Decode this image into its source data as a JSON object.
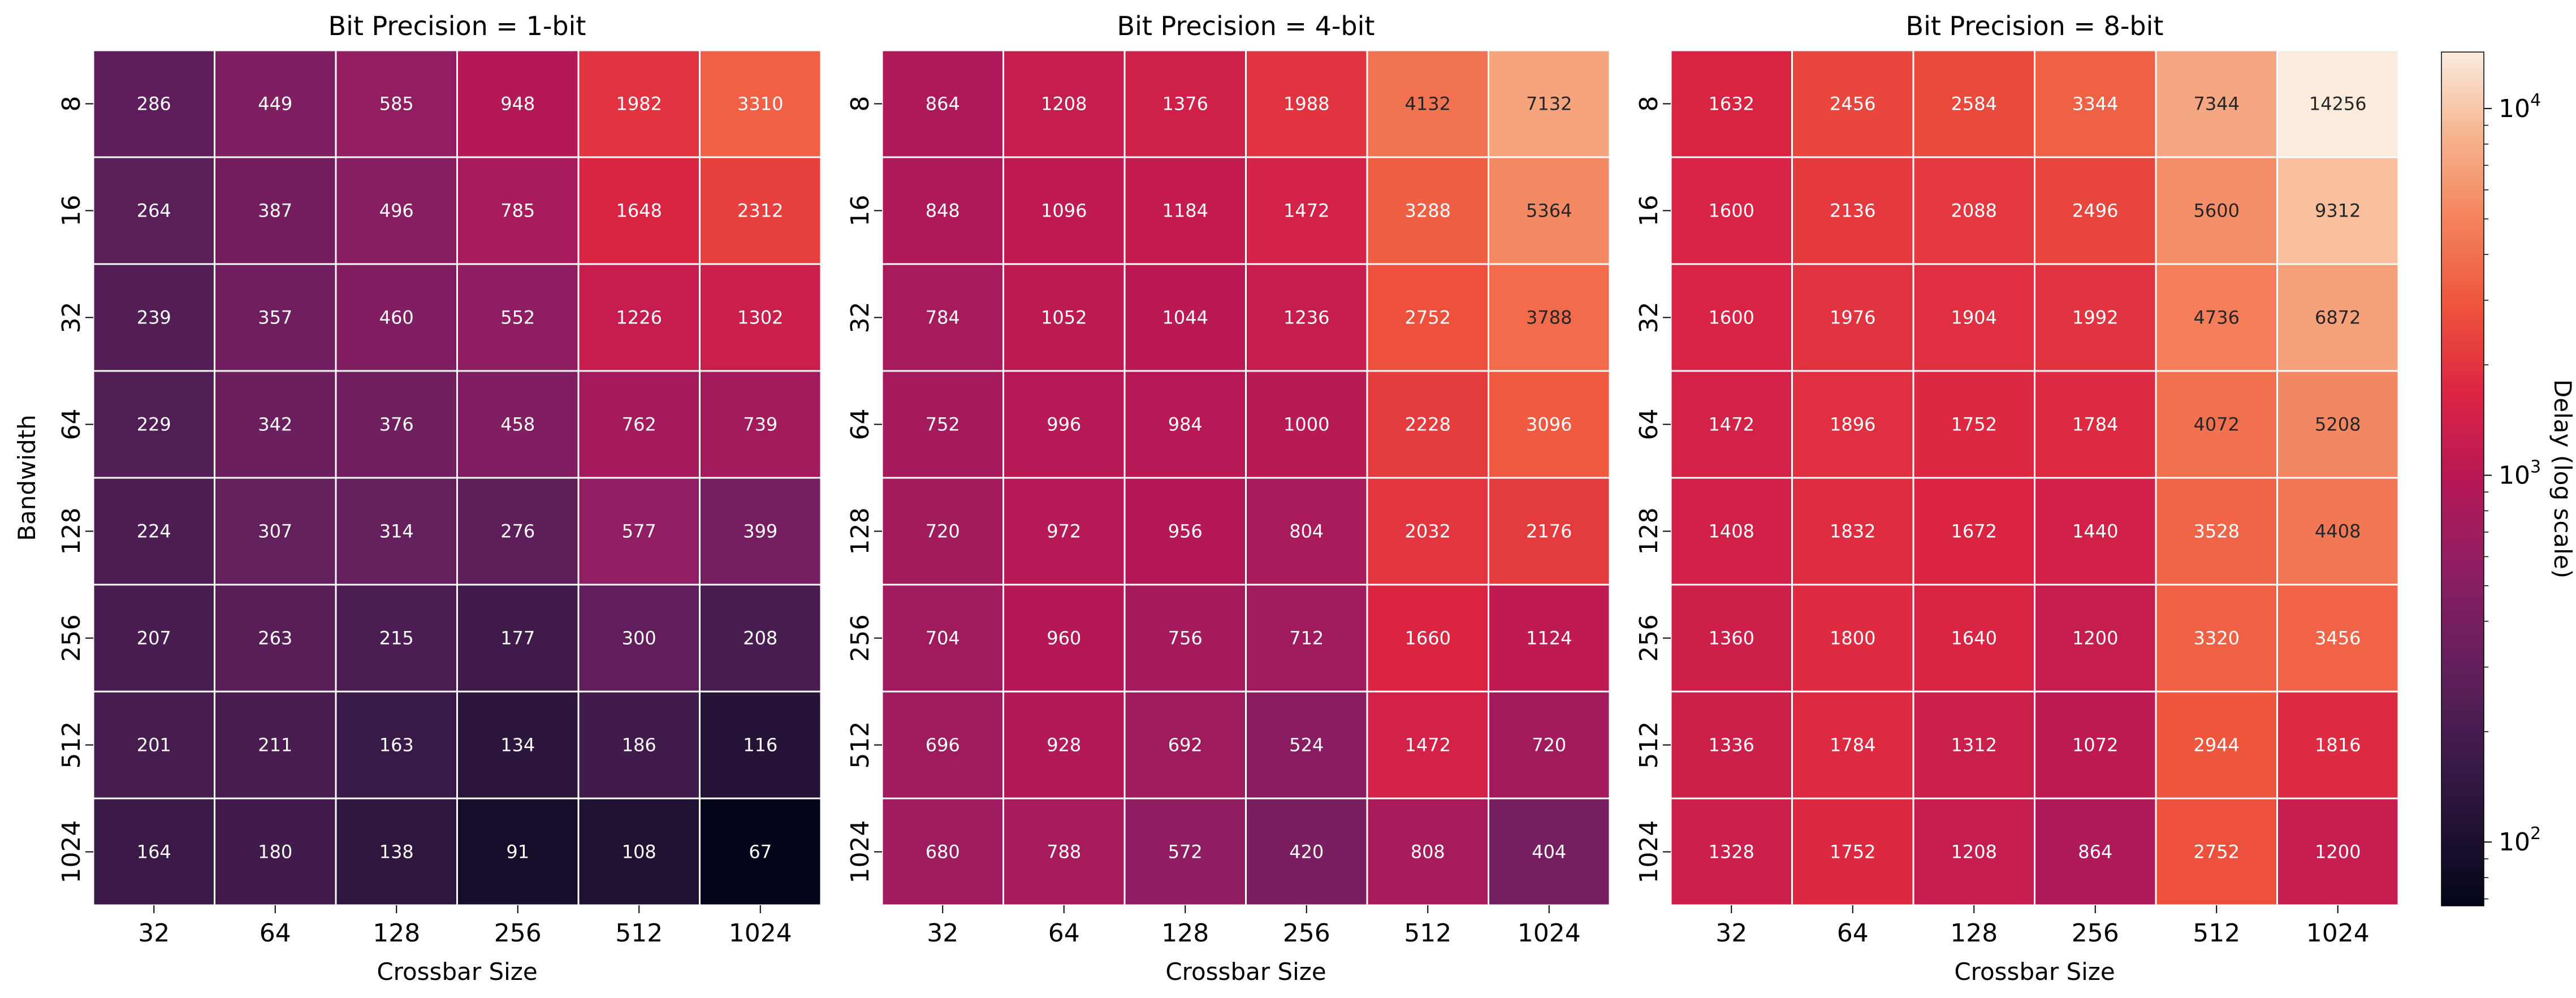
{
  "figure": {
    "colorbar": {
      "label": "Delay (log scale)",
      "scale": "log",
      "range": [
        67,
        14256
      ],
      "ticks": [
        {
          "base": "10",
          "exp": "2",
          "value": 100
        },
        {
          "base": "10",
          "exp": "3",
          "value": 1000
        },
        {
          "base": "10",
          "exp": "4",
          "value": 10000
        }
      ],
      "colormap": "rocket"
    }
  },
  "chart_data": [
    {
      "type": "heatmap",
      "title": "Bit Precision = 1-bit",
      "xlabel": "Crossbar Size",
      "ylabel": "Bandwidth",
      "x": [
        "32",
        "64",
        "128",
        "256",
        "512",
        "1024"
      ],
      "y": [
        "8",
        "16",
        "32",
        "64",
        "128",
        "256",
        "512",
        "1024"
      ],
      "values": [
        [
          286,
          449,
          585,
          948,
          1982,
          3310
        ],
        [
          264,
          387,
          496,
          785,
          1648,
          2312
        ],
        [
          239,
          357,
          460,
          552,
          1226,
          1302
        ],
        [
          229,
          342,
          376,
          458,
          762,
          739
        ],
        [
          224,
          307,
          314,
          276,
          577,
          399
        ],
        [
          207,
          263,
          215,
          177,
          300,
          208
        ],
        [
          201,
          211,
          163,
          134,
          186,
          116
        ],
        [
          164,
          180,
          138,
          91,
          108,
          67
        ]
      ]
    },
    {
      "type": "heatmap",
      "title": "Bit Precision = 4-bit",
      "xlabel": "Crossbar Size",
      "ylabel": "",
      "x": [
        "32",
        "64",
        "128",
        "256",
        "512",
        "1024"
      ],
      "y": [
        "8",
        "16",
        "32",
        "64",
        "128",
        "256",
        "512",
        "1024"
      ],
      "values": [
        [
          864,
          1208,
          1376,
          1988,
          4132,
          7132
        ],
        [
          848,
          1096,
          1184,
          1472,
          3288,
          5364
        ],
        [
          784,
          1052,
          1044,
          1236,
          2752,
          3788
        ],
        [
          752,
          996,
          984,
          1000,
          2228,
          3096
        ],
        [
          720,
          972,
          956,
          804,
          2032,
          2176
        ],
        [
          704,
          960,
          756,
          712,
          1660,
          1124
        ],
        [
          696,
          928,
          692,
          524,
          1472,
          720
        ],
        [
          680,
          788,
          572,
          420,
          808,
          404
        ]
      ]
    },
    {
      "type": "heatmap",
      "title": "Bit Precision = 8-bit",
      "xlabel": "Crossbar Size",
      "ylabel": "",
      "x": [
        "32",
        "64",
        "128",
        "256",
        "512",
        "1024"
      ],
      "y": [
        "8",
        "16",
        "32",
        "64",
        "128",
        "256",
        "512",
        "1024"
      ],
      "values": [
        [
          1632,
          2456,
          2584,
          3344,
          7344,
          14256
        ],
        [
          1600,
          2136,
          2088,
          2496,
          5600,
          9312
        ],
        [
          1600,
          1976,
          1904,
          1992,
          4736,
          6872
        ],
        [
          1472,
          1896,
          1752,
          1784,
          4072,
          5208
        ],
        [
          1408,
          1832,
          1672,
          1440,
          3528,
          4408
        ],
        [
          1360,
          1800,
          1640,
          1200,
          3320,
          3456
        ],
        [
          1336,
          1784,
          1312,
          1072,
          2944,
          1816
        ],
        [
          1328,
          1752,
          1208,
          864,
          2752,
          1200
        ]
      ]
    }
  ]
}
